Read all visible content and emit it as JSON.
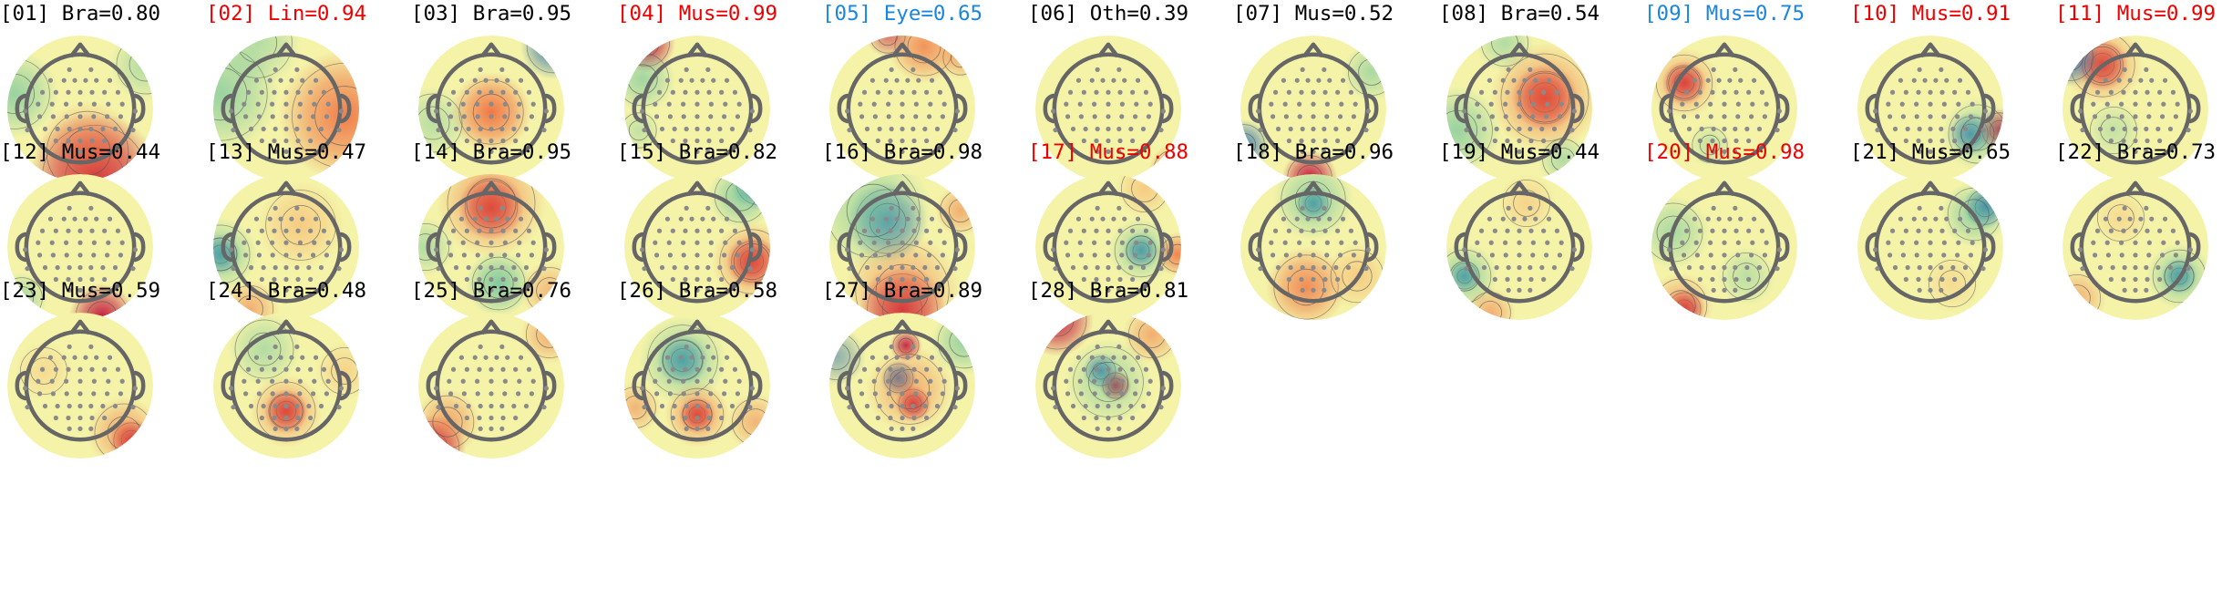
{
  "chart_data": {
    "type": "topomap-grid",
    "colors": {
      "red": "#ee0000",
      "blue": "#1a86e0",
      "black": "#000000"
    },
    "components": [
      {
        "label": "[01] Bra=0.80",
        "color": "black"
      },
      {
        "label": "[02] Lin=0.94",
        "color": "red"
      },
      {
        "label": "[03] Bra=0.95",
        "color": "black"
      },
      {
        "label": "[04] Mus=0.99",
        "color": "red"
      },
      {
        "label": "[05] Eye=0.65",
        "color": "blue"
      },
      {
        "label": "[06] Oth=0.39",
        "color": "black"
      },
      {
        "label": "[07] Mus=0.52",
        "color": "black"
      },
      {
        "label": "[08] Bra=0.54",
        "color": "black"
      },
      {
        "label": "[09] Mus=0.75",
        "color": "blue"
      },
      {
        "label": "[10] Mus=0.91",
        "color": "red"
      },
      {
        "label": "[11] Mus=0.99",
        "color": "red"
      },
      {
        "label": "[12] Mus=0.44",
        "color": "black"
      },
      {
        "label": "[13] Mus=0.47",
        "color": "black"
      },
      {
        "label": "[14] Bra=0.95",
        "color": "black"
      },
      {
        "label": "[15] Bra=0.82",
        "color": "black"
      },
      {
        "label": "[16] Bra=0.98",
        "color": "black"
      },
      {
        "label": "[17] Mus=0.88",
        "color": "red"
      },
      {
        "label": "[18] Bra=0.96",
        "color": "black"
      },
      {
        "label": "[19] Mus=0.44",
        "color": "black"
      },
      {
        "label": "[20] Mus=0.98",
        "color": "red"
      },
      {
        "label": "[21] Mus=0.65",
        "color": "black"
      },
      {
        "label": "[22] Bra=0.73",
        "color": "black"
      },
      {
        "label": "[23] Mus=0.59",
        "color": "black"
      },
      {
        "label": "[24] Bra=0.48",
        "color": "black"
      },
      {
        "label": "[25] Bra=0.76",
        "color": "black"
      },
      {
        "label": "[26] Bra=0.58",
        "color": "black"
      },
      {
        "label": "[27] Bra=0.89",
        "color": "black"
      },
      {
        "label": "[28] Bra=0.81",
        "color": "black"
      }
    ]
  }
}
